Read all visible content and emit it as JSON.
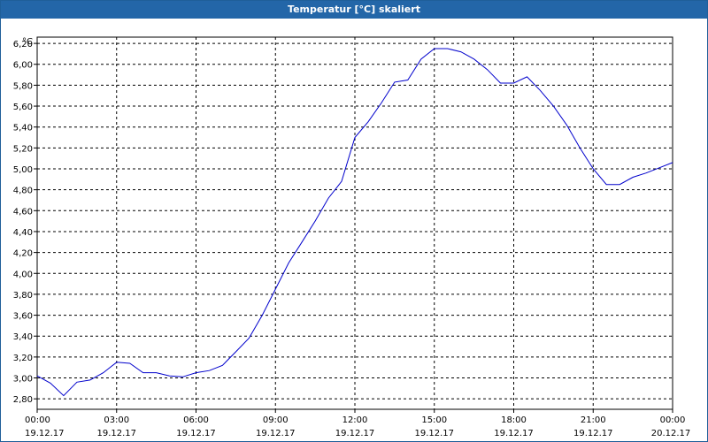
{
  "window": {
    "title": "Temperatur [°C] skaliert"
  },
  "chart_data": {
    "type": "line",
    "title": "Temperatur [°C] skaliert",
    "ylabel": "°C",
    "xlabel": "",
    "ylim": [
      2.7,
      6.26
    ],
    "yticks": [
      "2,80",
      "3,00",
      "3,20",
      "3,40",
      "3,60",
      "3,80",
      "4,00",
      "4,20",
      "4,40",
      "4,60",
      "4,80",
      "5,00",
      "5,20",
      "5,40",
      "5,60",
      "5,80",
      "6,00",
      "6,20"
    ],
    "xticks": [
      {
        "time": "00:00",
        "date": "19.12.17"
      },
      {
        "time": "03:00",
        "date": "19.12.17"
      },
      {
        "time": "06:00",
        "date": "19.12.17"
      },
      {
        "time": "09:00",
        "date": "19.12.17"
      },
      {
        "time": "12:00",
        "date": "19.12.17"
      },
      {
        "time": "15:00",
        "date": "19.12.17"
      },
      {
        "time": "18:00",
        "date": "19.12.17"
      },
      {
        "time": "21:00",
        "date": "19.12.17"
      },
      {
        "time": "00:00",
        "date": "20.12.17"
      }
    ],
    "grid": true,
    "line_color": "#0000cc",
    "series": [
      {
        "x": [
          "19.12.17 00:00",
          "19.12.17 00:30",
          "19.12.17 01:00",
          "19.12.17 01:30",
          "19.12.17 02:00",
          "19.12.17 02:30",
          "19.12.17 03:00",
          "19.12.17 03:30",
          "19.12.17 04:00",
          "19.12.17 04:30",
          "19.12.17 05:00",
          "19.12.17 05:30",
          "19.12.17 06:00",
          "19.12.17 06:30",
          "19.12.17 07:00",
          "19.12.17 07:30",
          "19.12.17 08:00",
          "19.12.17 08:30",
          "19.12.17 09:00",
          "19.12.17 09:30",
          "19.12.17 10:00",
          "19.12.17 10:30",
          "19.12.17 11:00",
          "19.12.17 11:30",
          "19.12.17 12:00",
          "19.12.17 12:30",
          "19.12.17 13:00",
          "19.12.17 13:30",
          "19.12.17 14:00",
          "19.12.17 14:30",
          "19.12.17 15:00",
          "19.12.17 15:30",
          "19.12.17 16:00",
          "19.12.17 16:30",
          "19.12.17 17:00",
          "19.12.17 17:30",
          "19.12.17 18:00",
          "19.12.17 18:30",
          "19.12.17 19:00",
          "19.12.17 19:30",
          "19.12.17 20:00",
          "19.12.17 20:30",
          "19.12.17 21:00",
          "19.12.17 21:30",
          "19.12.17 22:00",
          "19.12.17 22:30",
          "19.12.17 23:00",
          "19.12.17 23:30",
          "20.12.17 00:00"
        ],
        "values": [
          3.02,
          2.95,
          2.83,
          2.96,
          2.98,
          3.05,
          3.15,
          3.14,
          3.05,
          3.05,
          3.02,
          3.01,
          3.05,
          3.07,
          3.12,
          3.25,
          3.38,
          3.6,
          3.85,
          4.1,
          4.3,
          4.5,
          4.72,
          4.88,
          5.3,
          5.45,
          5.63,
          5.83,
          5.85,
          6.05,
          6.15,
          6.15,
          6.12,
          6.05,
          5.95,
          5.82,
          5.82,
          5.88,
          5.75,
          5.6,
          5.42,
          5.2,
          5.0,
          4.85,
          4.85,
          4.92,
          4.96,
          5.01,
          5.06
        ]
      }
    ]
  }
}
